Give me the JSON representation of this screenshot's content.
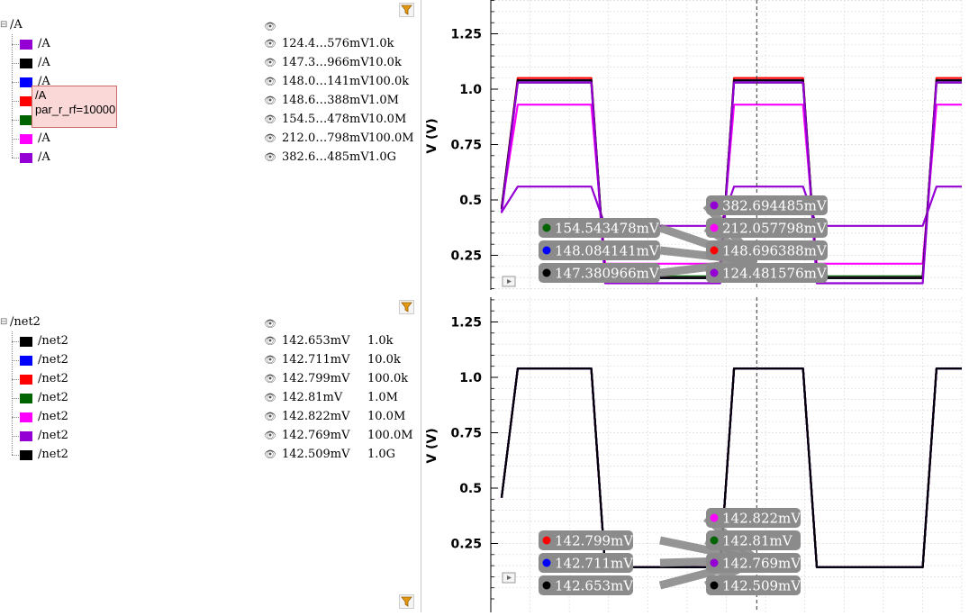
{
  "panes": [
    {
      "title": "/A",
      "rows": [
        {
          "name": "/A",
          "value": "124.4…576mV",
          "param": "1.0k",
          "color": "#9400d3"
        },
        {
          "name": "/A",
          "value": "147.3…966mV",
          "param": "10.0k",
          "color": "#000000"
        },
        {
          "name": "/A",
          "value": "148.0…141mV",
          "param": "100.0k",
          "color": "#0000ff"
        },
        {
          "name": "/A",
          "value": "148.6…388mV",
          "param": "1.0M",
          "color": "#ff0000"
        },
        {
          "name": "/A",
          "value": "154.5…478mV",
          "param": "10.0M",
          "color": "#006400"
        },
        {
          "name": "/A",
          "value": "212.0…798mV",
          "param": "100.0M",
          "color": "#ff00ff"
        },
        {
          "name": "/A",
          "value": "382.6…485mV",
          "param": "1.0G",
          "color": "#9400d3"
        }
      ]
    },
    {
      "title": "/net2",
      "rows": [
        {
          "name": "/net2",
          "value": "142.653mV",
          "param": "1.0k",
          "color": "#000000"
        },
        {
          "name": "/net2",
          "value": "142.711mV",
          "param": "10.0k",
          "color": "#0000ff"
        },
        {
          "name": "/net2",
          "value": "142.799mV",
          "param": "100.0k",
          "color": "#ff0000"
        },
        {
          "name": "/net2",
          "value": "142.81mV",
          "param": "1.0M",
          "color": "#006400"
        },
        {
          "name": "/net2",
          "value": "142.822mV",
          "param": "10.0M",
          "color": "#ff00ff"
        },
        {
          "name": "/net2",
          "value": "142.769mV",
          "param": "100.0M",
          "color": "#9400d3"
        },
        {
          "name": "/net2",
          "value": "142.509mV",
          "param": "1.0G",
          "color": "#000000"
        }
      ]
    }
  ],
  "tooltip": {
    "line1": "/A",
    "line2": "par_r_rf=10000"
  },
  "chart_data": [
    {
      "type": "line",
      "ylabel": "V (V)",
      "ylim": [
        0.0,
        1.45
      ],
      "yticks": [
        0.25,
        0.5,
        0.75,
        1.0,
        1.25
      ],
      "ytick_labels": [
        "0.25",
        "0.5",
        "0.75",
        "1.0",
        "1.25"
      ],
      "grid": true,
      "cursor_x_fraction": 0.425,
      "series": [
        {
          "color": "#9400d3",
          "high": 1.03,
          "low": 0.124
        },
        {
          "color": "#000000",
          "high": 1.04,
          "low": 0.147
        },
        {
          "color": "#0000ff",
          "high": 1.04,
          "low": 0.148
        },
        {
          "color": "#ff0000",
          "high": 1.05,
          "low": 0.149
        },
        {
          "color": "#006400",
          "high": 1.03,
          "low": 0.155
        },
        {
          "color": "#ff00ff",
          "high": 0.93,
          "low": 0.212
        },
        {
          "color": "#9400d3",
          "high": 0.56,
          "low": 0.383
        }
      ],
      "markers_left": [
        {
          "label": "154.543478mV",
          "color": "#006400"
        },
        {
          "label": "148.084141mV",
          "color": "#0000ff"
        },
        {
          "label": "147.380966mV",
          "color": "#000000"
        }
      ],
      "markers_right": [
        {
          "label": "382.694485mV",
          "color": "#9400d3"
        },
        {
          "label": "212.057798mV",
          "color": "#ff00ff"
        },
        {
          "label": "148.696388mV",
          "color": "#ff0000"
        },
        {
          "label": "124.481576mV",
          "color": "#9400d3"
        }
      ]
    },
    {
      "type": "line",
      "ylabel": "V (V)",
      "ylim": [
        0.0,
        1.45
      ],
      "yticks": [
        0.25,
        0.5,
        0.75,
        1.0,
        1.25
      ],
      "ytick_labels": [
        "0.25",
        "0.5",
        "0.75",
        "1.0",
        "1.25"
      ],
      "grid": true,
      "cursor_x_fraction": 0.425,
      "series": [
        {
          "color": "#000000",
          "high": 1.04,
          "low": 0.143
        },
        {
          "color": "#0000ff",
          "high": 1.04,
          "low": 0.143
        },
        {
          "color": "#ff0000",
          "high": 1.04,
          "low": 0.143
        },
        {
          "color": "#006400",
          "high": 1.04,
          "low": 0.143
        },
        {
          "color": "#ff00ff",
          "high": 1.04,
          "low": 0.143
        },
        {
          "color": "#9400d3",
          "high": 1.04,
          "low": 0.143
        },
        {
          "color": "#000000",
          "high": 1.04,
          "low": 0.143
        }
      ],
      "markers_left": [
        {
          "label": "142.799mV",
          "color": "#ff0000"
        },
        {
          "label": "142.711mV",
          "color": "#0000ff"
        },
        {
          "label": "142.653mV",
          "color": "#000000"
        }
      ],
      "markers_right": [
        {
          "label": "142.822mV",
          "color": "#ff00ff"
        },
        {
          "label": "142.81mV",
          "color": "#006400"
        },
        {
          "label": "142.769mV",
          "color": "#9400d3"
        },
        {
          "label": "142.509mV",
          "color": "#000000"
        }
      ]
    }
  ]
}
